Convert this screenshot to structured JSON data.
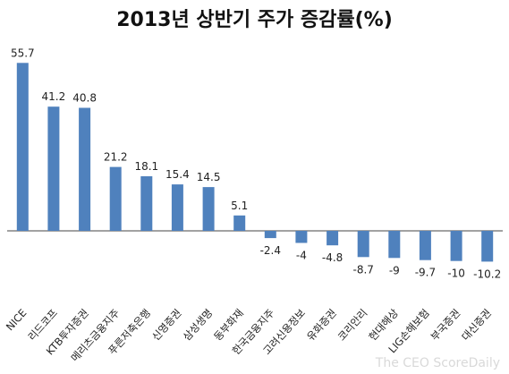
{
  "chart_data": {
    "type": "bar",
    "title": "2013년 상반기 주가 증감률(%)",
    "xlabel": "",
    "ylabel": "",
    "categories": [
      "NICE",
      "리드코프",
      "KTB투자증권",
      "메리츠금융지주",
      "푸른저축은행",
      "신영증권",
      "삼성생명",
      "동부화재",
      "한국금융지주",
      "고려신용정보",
      "유화증권",
      "코리안리",
      "현대해상",
      "LIG손해보험",
      "부국증권",
      "대신증권"
    ],
    "values": [
      55.7,
      41.2,
      40.8,
      21.2,
      18.1,
      15.4,
      14.5,
      5.1,
      -2.4,
      -4,
      -4.8,
      -8.7,
      -9,
      -9.7,
      -10,
      -10.2
    ],
    "value_labels": [
      "55.7",
      "41.2",
      "40.8",
      "21.2",
      "18.1",
      "15.4",
      "14.5",
      "5.1",
      "-2.4",
      "-4",
      "-4.8",
      "-8.7",
      "-9",
      "-9.7",
      "-10",
      "-10.2"
    ],
    "ylim": [
      -12,
      62
    ],
    "grid": false,
    "legend": "none",
    "bar_color": "#4f81bd"
  },
  "watermark": "The CEO ScoreDaily"
}
